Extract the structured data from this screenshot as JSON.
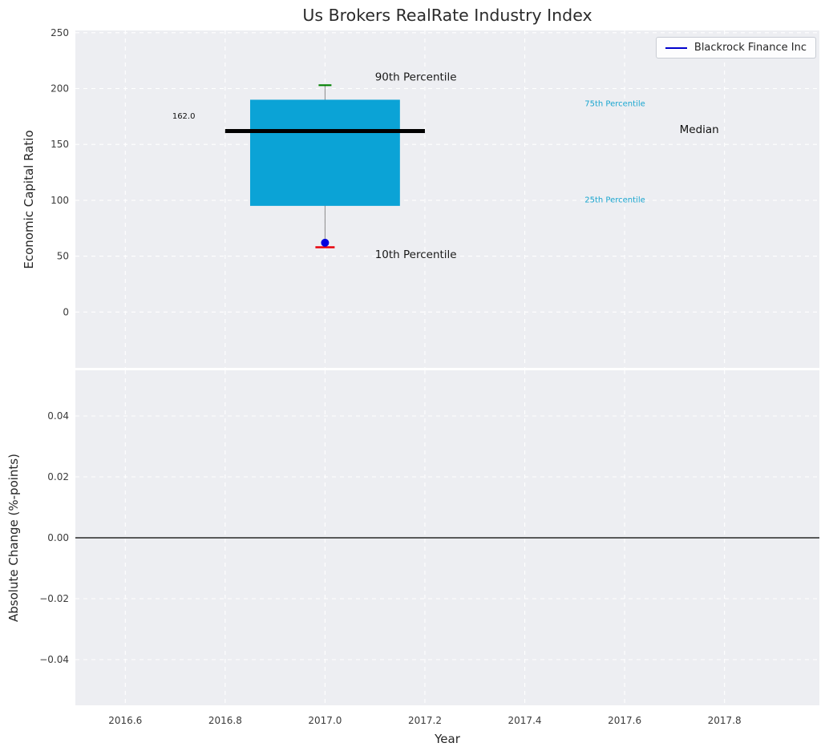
{
  "chart_data": {
    "type": "box-timeseries",
    "title": "Us Brokers RealRate Industry Index",
    "x": {
      "label": "Year",
      "xlim": [
        2016.5,
        2017.99
      ],
      "xticks": [
        2016.6,
        2016.8,
        2017.0,
        2017.2,
        2017.4,
        2017.6,
        2017.8
      ],
      "xtick_labels": [
        "2016.6",
        "2016.8",
        "2017.0",
        "2017.2",
        "2017.4",
        "2017.6",
        "2017.8"
      ]
    },
    "top_panel": {
      "ylabel": "Economic Capital Ratio",
      "ylim": [
        -50,
        252
      ],
      "yticks": [
        0,
        50,
        100,
        150,
        200,
        250
      ],
      "ytick_labels": [
        "0",
        "50",
        "100",
        "150",
        "200",
        "250"
      ],
      "grid": true,
      "series": {
        "year": 2017.0,
        "p90": 203,
        "p75": 190,
        "median": 162.0,
        "p25": 95,
        "p10": 58,
        "company_value": 62,
        "box_x": [
          2016.85,
          2017.15
        ],
        "median_x": [
          2016.8,
          2017.2
        ]
      },
      "annotations": [
        {
          "text": "90th Percentile",
          "x": 2017.1,
          "y": 210,
          "color": "#1a1a1a",
          "size": 13.5,
          "anchor": "start"
        },
        {
          "text": "10th Percentile",
          "x": 2017.1,
          "y": 51,
          "color": "#1a1a1a",
          "size": 13.5,
          "anchor": "start"
        },
        {
          "text": "75th Percentile",
          "x": 2017.52,
          "y": 186,
          "color": "#18a5cf",
          "size": 10,
          "anchor": "start"
        },
        {
          "text": "25th Percentile",
          "x": 2017.52,
          "y": 100,
          "color": "#18a5cf",
          "size": 10,
          "anchor": "start"
        },
        {
          "text": "Median",
          "x": 2017.71,
          "y": 163,
          "color": "#111111",
          "size": 13.5,
          "anchor": "start"
        },
        {
          "text": "162.0",
          "x": 2016.74,
          "y": 175,
          "color": "#111111",
          "size": 10,
          "anchor": "end"
        }
      ]
    },
    "bottom_panel": {
      "ylabel": "Absolute Change (%-points)",
      "ylim": [
        -0.055,
        0.055
      ],
      "yticks": [
        0.04,
        0.02,
        0.0,
        -0.02,
        -0.04
      ],
      "ytick_labels": [
        "0.04",
        "0.02",
        "0.00",
        "−0.02",
        "−0.04"
      ],
      "grid": true,
      "zero_line": 0.0
    },
    "legend": {
      "label": "Blackrock Finance Inc",
      "line_color": "#0000cc",
      "position": "upper right"
    },
    "colors": {
      "panel_bg": "#edeef2",
      "grid": "#ffffff",
      "box": "#0ba3d6",
      "median": "#000000",
      "p90_tick": "#008000",
      "p10_tick": "#e8000b",
      "company_dot": "#0000dd",
      "whisker": "#8a8a8a",
      "percentile_label": "#18a5cf"
    }
  }
}
